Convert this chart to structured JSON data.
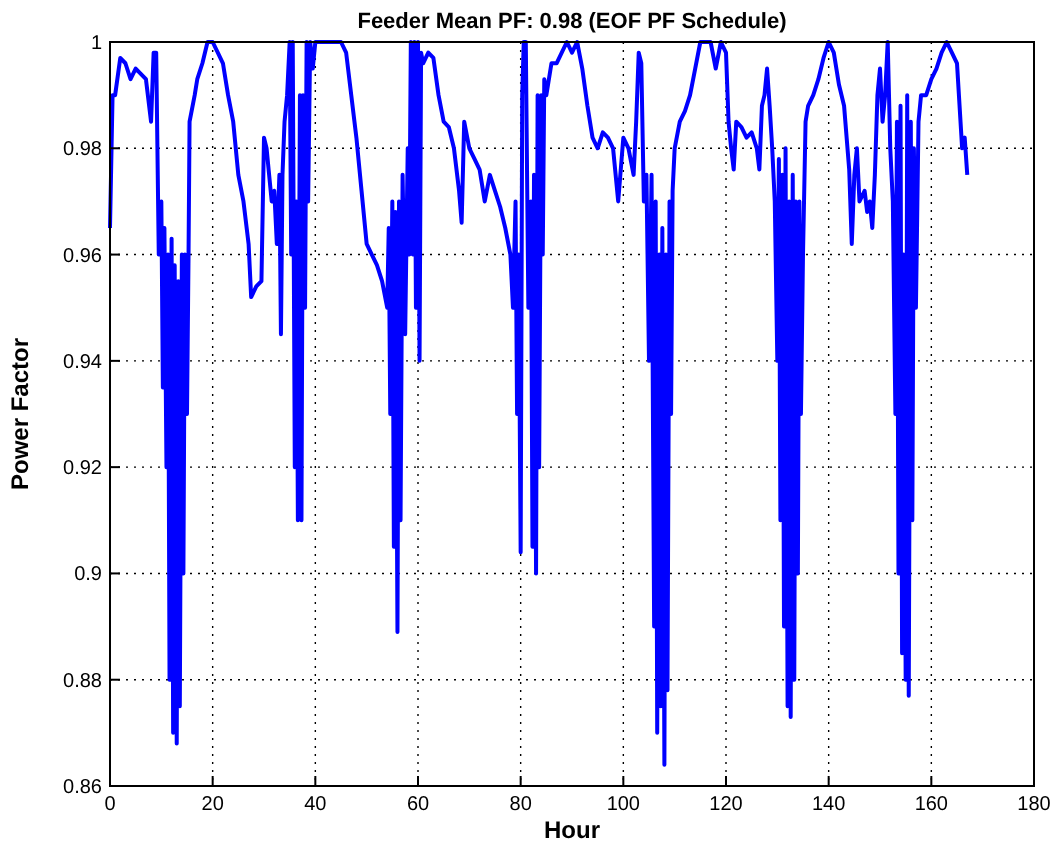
{
  "chart_data": {
    "type": "line",
    "title": "Feeder Mean PF: 0.98 (EOF PF Schedule)",
    "xlabel": "Hour",
    "ylabel": "Power Factor",
    "xlim": [
      0,
      180
    ],
    "xticks": [
      0,
      20,
      40,
      60,
      80,
      100,
      120,
      140,
      160,
      180
    ],
    "ylim": [
      0.86,
      1
    ],
    "yticks": [
      0.86,
      0.88,
      0.9,
      0.92,
      0.94,
      0.96,
      0.98,
      1
    ],
    "grid": true,
    "line_style": "solid",
    "marker": "none",
    "series": [
      {
        "color": "#0000ff",
        "x": [
          0,
          0.5,
          1,
          2,
          3,
          4,
          5,
          6,
          7,
          8,
          8.5,
          9,
          9.5,
          10,
          10.3,
          10.6,
          11,
          11.3,
          11.6,
          12,
          12.3,
          12.6,
          13,
          13.3,
          13.6,
          14,
          14.3,
          14.6,
          15,
          15.3,
          15.5,
          16.5,
          17,
          18,
          19,
          20,
          21,
          22,
          23,
          24,
          25,
          26,
          27,
          27.5,
          28.5,
          29.5,
          30,
          30.5,
          31,
          31.5,
          32,
          32.5,
          33,
          33.3,
          33.6,
          34,
          34.5,
          35,
          35.3,
          35.6,
          36,
          36.3,
          36.6,
          37,
          37.3,
          37.6,
          38,
          38.3,
          38.6,
          39,
          39.5,
          40,
          45,
          46,
          47,
          48,
          49,
          50,
          51,
          52,
          53,
          54,
          54.3,
          54.6,
          55,
          55.3,
          55.6,
          56,
          56.3,
          56.6,
          57,
          57.5,
          58,
          58.3,
          58.6,
          59,
          59.3,
          59.6,
          60,
          60.3,
          60.6,
          61,
          62,
          63,
          64,
          65,
          66,
          67,
          68,
          68.5,
          69,
          70,
          71,
          72,
          73,
          74,
          75,
          76,
          77,
          78,
          78.5,
          79,
          79.3,
          79.6,
          80,
          80.3,
          80.6,
          81,
          81.5,
          82,
          82.3,
          82.6,
          83,
          83.3,
          83.6,
          84,
          84.3,
          84.6,
          85,
          86,
          87,
          88,
          89,
          90,
          91,
          92,
          93,
          94,
          95,
          96,
          97,
          98,
          99,
          100,
          101,
          102,
          102.5,
          103,
          103.5,
          104,
          104.5,
          105,
          105.5,
          106,
          106.3,
          106.6,
          107,
          107.3,
          107.6,
          108,
          108.3,
          108.6,
          109,
          109.3,
          109.6,
          110,
          111,
          112,
          113,
          114,
          115,
          117,
          118,
          119,
          120,
          120.5,
          121,
          121.5,
          122,
          123,
          124,
          125,
          126,
          126.5,
          127,
          127.5,
          128,
          128.5,
          129,
          129.5,
          130,
          130.3,
          130.6,
          131,
          131.3,
          131.6,
          132,
          132.3,
          132.6,
          133,
          133.3,
          133.6,
          134,
          134.3,
          134.6,
          135,
          135.5,
          136,
          137,
          138,
          139,
          140,
          141,
          142,
          143,
          143.5,
          144,
          144.5,
          145,
          145.5,
          146,
          147,
          147.5,
          148,
          148.5,
          149,
          149.5,
          150,
          150.5,
          151,
          151.5,
          152,
          152.5,
          153,
          153.3,
          153.6,
          154,
          154.3,
          154.6,
          155,
          155.3,
          155.6,
          156,
          156.3,
          156.6,
          157,
          157.5,
          158,
          159,
          160,
          161,
          162,
          163,
          164,
          165,
          166,
          166.5,
          167
        ],
        "values": [
          0.965,
          0.99,
          0.99,
          0.997,
          0.996,
          0.993,
          0.995,
          0.994,
          0.993,
          0.985,
          0.998,
          0.998,
          0.96,
          0.97,
          0.935,
          0.965,
          0.92,
          0.96,
          0.88,
          0.963,
          0.87,
          0.958,
          0.868,
          0.955,
          0.875,
          0.96,
          0.9,
          0.96,
          0.93,
          0.96,
          0.985,
          0.99,
          0.993,
          0.996,
          1,
          1,
          0.998,
          0.996,
          0.99,
          0.985,
          0.975,
          0.97,
          0.962,
          0.952,
          0.954,
          0.955,
          0.982,
          0.98,
          0.975,
          0.97,
          0.972,
          0.962,
          0.975,
          0.945,
          0.975,
          0.985,
          0.99,
          1,
          0.96,
          1,
          0.92,
          0.97,
          0.91,
          0.99,
          0.91,
          0.99,
          0.95,
          1,
          0.97,
          1,
          0.995,
          1,
          1,
          0.998,
          0.99,
          0.982,
          0.972,
          0.962,
          0.96,
          0.958,
          0.955,
          0.95,
          0.965,
          0.93,
          0.97,
          0.905,
          0.968,
          0.889,
          0.97,
          0.91,
          0.975,
          0.945,
          0.98,
          0.96,
          1,
          0.96,
          1,
          0.95,
          1,
          0.94,
          0.998,
          0.996,
          0.998,
          0.997,
          0.99,
          0.985,
          0.984,
          0.98,
          0.972,
          0.966,
          0.985,
          0.98,
          0.978,
          0.976,
          0.97,
          0.975,
          0.972,
          0.969,
          0.965,
          0.96,
          0.95,
          0.97,
          0.93,
          0.96,
          0.904,
          0.99,
          1,
          1,
          0.95,
          0.97,
          0.905,
          0.975,
          0.9,
          0.99,
          0.92,
          0.99,
          0.96,
          0.993,
          0.99,
          0.996,
          0.996,
          0.998,
          1,
          0.998,
          1,
          0.995,
          0.988,
          0.982,
          0.98,
          0.983,
          0.982,
          0.98,
          0.97,
          0.982,
          0.98,
          0.975,
          0.985,
          0.998,
          0.996,
          0.97,
          0.975,
          0.94,
          0.975,
          0.89,
          0.97,
          0.87,
          0.96,
          0.875,
          0.965,
          0.864,
          0.96,
          0.878,
          0.97,
          0.93,
          0.972,
          0.98,
          0.985,
          0.987,
          0.99,
          0.995,
          1,
          1,
          0.995,
          1,
          0.998,
          0.985,
          0.98,
          0.976,
          0.985,
          0.984,
          0.982,
          0.983,
          0.98,
          0.976,
          0.988,
          0.99,
          0.995,
          0.988,
          0.98,
          0.97,
          0.94,
          0.978,
          0.91,
          0.975,
          0.89,
          0.98,
          0.875,
          0.97,
          0.873,
          0.975,
          0.88,
          0.97,
          0.9,
          0.97,
          0.93,
          0.96,
          0.985,
          0.988,
          0.99,
          0.993,
          0.997,
          1,
          0.998,
          0.992,
          0.988,
          0.982,
          0.976,
          0.962,
          0.975,
          0.98,
          0.97,
          0.972,
          0.968,
          0.97,
          0.965,
          0.975,
          0.99,
          0.995,
          0.985,
          0.99,
          1,
          0.98,
          0.97,
          0.93,
          0.985,
          0.9,
          0.988,
          0.885,
          0.96,
          0.88,
          0.99,
          0.877,
          0.985,
          0.91,
          0.98,
          0.95,
          0.985,
          0.99,
          0.99,
          0.993,
          0.995,
          0.998,
          1,
          0.998,
          0.996,
          0.98,
          0.982,
          0.975
        ]
      }
    ]
  }
}
